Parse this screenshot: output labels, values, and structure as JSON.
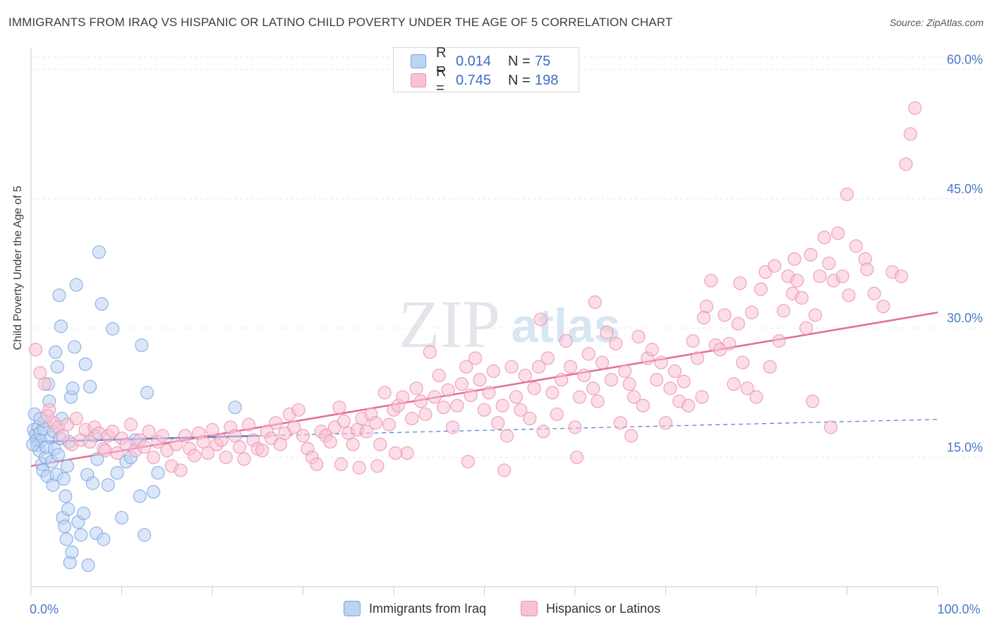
{
  "header": {
    "title": "IMMIGRANTS FROM IRAQ VS HISPANIC OR LATINO CHILD POVERTY UNDER THE AGE OF 5 CORRELATION CHART",
    "source": "Source: ZipAtlas.com"
  },
  "watermark": {
    "zip": "ZIP",
    "atlas": "atlas"
  },
  "legend": {
    "rows": [
      {
        "r_label": "R =",
        "r_value": "0.014",
        "n_label": "N =",
        "n_value": "75",
        "color": "#a9c6f0"
      },
      {
        "r_label": "R =",
        "r_value": "0.745",
        "n_label": "N =",
        "n_value": "198",
        "color": "#f6b6cb"
      }
    ]
  },
  "bottom_legend": {
    "items": [
      {
        "label": "Immigrants from Iraq",
        "color": "#a9c6f0"
      },
      {
        "label": "Hispanics or Latinos",
        "color": "#f6b6cb"
      }
    ]
  },
  "chart_data": {
    "type": "scatter",
    "title": "IMMIGRANTS FROM IRAQ VS HISPANIC OR LATINO CHILD POVERTY UNDER THE AGE OF 5 CORRELATION CHART",
    "xlabel": "",
    "ylabel": "Child Poverty Under the Age of 5",
    "xlim": [
      0,
      100
    ],
    "ylim": [
      0,
      61.5
    ],
    "x_tick_labels": [
      {
        "value": 0,
        "label": "0.0%"
      },
      {
        "value": 100,
        "label": "100.0%"
      }
    ],
    "y_tick_labels": [
      {
        "value": 15,
        "label": "15.0%"
      },
      {
        "value": 30,
        "label": "30.0%"
      },
      {
        "value": 45,
        "label": "45.0%"
      },
      {
        "value": 60,
        "label": "60.0%"
      }
    ],
    "grid": true,
    "series": [
      {
        "name": "Immigrants from Iraq",
        "color": "#7aa3e0",
        "fill": "#bcd3f3",
        "R": 0.014,
        "N": 75,
        "trend": {
          "x0": 0,
          "y0": 16.8,
          "x1": 25,
          "y1": 17.5,
          "dash_to_x": 100,
          "dash_to_y": 19.4,
          "color": "#4a7fd4"
        },
        "points": [
          [
            0.3,
            18.2
          ],
          [
            0.5,
            17.6
          ],
          [
            0.6,
            17.0
          ],
          [
            0.7,
            16.4
          ],
          [
            0.8,
            18.5
          ],
          [
            0.9,
            15.8
          ],
          [
            1.0,
            17.8
          ],
          [
            1.1,
            16.9
          ],
          [
            1.2,
            14.2
          ],
          [
            1.3,
            13.5
          ],
          [
            0.4,
            20.0
          ],
          [
            1.4,
            18.3
          ],
          [
            1.5,
            19.2
          ],
          [
            1.6,
            15.0
          ],
          [
            1.7,
            16.2
          ],
          [
            1.8,
            12.8
          ],
          [
            2.0,
            21.5
          ],
          [
            2.2,
            17.3
          ],
          [
            2.3,
            14.5
          ],
          [
            2.4,
            11.8
          ],
          [
            2.5,
            18.0
          ],
          [
            2.6,
            16.0
          ],
          [
            2.8,
            13.0
          ],
          [
            3.0,
            15.3
          ],
          [
            3.2,
            17.2
          ],
          [
            3.4,
            19.5
          ],
          [
            3.6,
            12.5
          ],
          [
            3.8,
            10.5
          ],
          [
            4.0,
            14.0
          ],
          [
            4.2,
            16.8
          ],
          [
            1.9,
            23.5
          ],
          [
            2.7,
            27.2
          ],
          [
            2.9,
            25.5
          ],
          [
            3.1,
            33.8
          ],
          [
            4.4,
            22.0
          ],
          [
            4.6,
            23.0
          ],
          [
            3.3,
            30.2
          ],
          [
            4.8,
            27.8
          ],
          [
            5.0,
            35.0
          ],
          [
            6.0,
            25.8
          ],
          [
            6.5,
            23.2
          ],
          [
            7.5,
            38.8
          ],
          [
            7.8,
            32.8
          ],
          [
            9.0,
            29.9
          ],
          [
            12.0,
            10.5
          ],
          [
            12.5,
            6.0
          ],
          [
            12.8,
            22.5
          ],
          [
            12.2,
            28.0
          ],
          [
            13.5,
            11.0
          ],
          [
            14.0,
            13.2
          ],
          [
            3.5,
            8.0
          ],
          [
            3.7,
            7.0
          ],
          [
            3.9,
            5.5
          ],
          [
            4.1,
            9.0
          ],
          [
            4.3,
            2.8
          ],
          [
            4.5,
            4.0
          ],
          [
            5.2,
            7.5
          ],
          [
            5.5,
            6.0
          ],
          [
            6.2,
            13.0
          ],
          [
            6.8,
            12.0
          ],
          [
            5.8,
            8.5
          ],
          [
            6.3,
            2.5
          ],
          [
            7.2,
            6.2
          ],
          [
            7.0,
            17.5
          ],
          [
            7.3,
            14.8
          ],
          [
            8.0,
            5.5
          ],
          [
            8.5,
            11.8
          ],
          [
            9.5,
            13.2
          ],
          [
            10.0,
            8.0
          ],
          [
            10.5,
            14.5
          ],
          [
            11.0,
            15.0
          ],
          [
            11.5,
            17.0
          ],
          [
            22.5,
            20.8
          ],
          [
            0.2,
            16.5
          ],
          [
            1.0,
            19.5
          ]
        ]
      },
      {
        "name": "Hispanics or Latinos",
        "color": "#ec8fb0",
        "fill": "#f7c3d4",
        "R": 0.745,
        "N": 198,
        "trend": {
          "x0": 0,
          "y0": 14.0,
          "x1": 100,
          "y1": 31.8,
          "color": "#e56b97"
        },
        "points": [
          [
            0.5,
            27.5
          ],
          [
            1.0,
            24.8
          ],
          [
            1.5,
            23.5
          ],
          [
            2.0,
            20.5
          ],
          [
            2.5,
            19.0
          ],
          [
            3.0,
            18.5
          ],
          [
            3.5,
            17.5
          ],
          [
            4.0,
            18.8
          ],
          [
            4.5,
            16.5
          ],
          [
            5.0,
            19.5
          ],
          [
            5.5,
            17.0
          ],
          [
            6.0,
            18.2
          ],
          [
            6.5,
            16.8
          ],
          [
            7.0,
            18.5
          ],
          [
            7.5,
            17.8
          ],
          [
            8.0,
            16.0
          ],
          [
            8.5,
            17.5
          ],
          [
            9.0,
            18.0
          ],
          [
            9.5,
            15.5
          ],
          [
            10.0,
            17.2
          ],
          [
            10.5,
            16.5
          ],
          [
            11.0,
            18.8
          ],
          [
            11.5,
            15.8
          ],
          [
            12.0,
            17.0
          ],
          [
            12.5,
            16.2
          ],
          [
            13.0,
            18.0
          ],
          [
            13.5,
            15.0
          ],
          [
            14.0,
            16.8
          ],
          [
            14.5,
            17.5
          ],
          [
            15.0,
            15.8
          ],
          [
            15.5,
            14.0
          ],
          [
            16.0,
            16.5
          ],
          [
            16.5,
            13.5
          ],
          [
            17.0,
            17.5
          ],
          [
            17.5,
            16.0
          ],
          [
            18.0,
            15.2
          ],
          [
            18.5,
            17.8
          ],
          [
            19.0,
            16.8
          ],
          [
            19.5,
            15.5
          ],
          [
            20.0,
            18.2
          ],
          [
            20.5,
            16.5
          ],
          [
            21.0,
            17.0
          ],
          [
            21.5,
            15.0
          ],
          [
            22.0,
            18.5
          ],
          [
            22.5,
            17.5
          ],
          [
            23.0,
            16.2
          ],
          [
            23.5,
            14.8
          ],
          [
            24.0,
            18.8
          ],
          [
            24.5,
            17.0
          ],
          [
            25.0,
            16.0
          ],
          [
            25.5,
            15.8
          ],
          [
            26.0,
            18.0
          ],
          [
            26.5,
            17.2
          ],
          [
            27.0,
            19.0
          ],
          [
            27.5,
            16.5
          ],
          [
            28.0,
            17.8
          ],
          [
            28.5,
            20.0
          ],
          [
            29.0,
            18.5
          ],
          [
            29.5,
            20.5
          ],
          [
            30.0,
            17.5
          ],
          [
            30.5,
            16.0
          ],
          [
            31.0,
            15.0
          ],
          [
            31.5,
            14.2
          ],
          [
            32.0,
            18.0
          ],
          [
            32.5,
            17.5
          ],
          [
            33.0,
            16.8
          ],
          [
            33.5,
            18.5
          ],
          [
            34.0,
            20.8
          ],
          [
            34.5,
            19.2
          ],
          [
            35.0,
            17.8
          ],
          [
            35.5,
            16.5
          ],
          [
            36.0,
            18.2
          ],
          [
            36.5,
            19.5
          ],
          [
            37.0,
            18.0
          ],
          [
            37.5,
            20.0
          ],
          [
            38.0,
            19.0
          ],
          [
            38.5,
            16.5
          ],
          [
            39.0,
            22.5
          ],
          [
            39.5,
            18.8
          ],
          [
            40.0,
            20.5
          ],
          [
            40.5,
            21.0
          ],
          [
            41.0,
            22.0
          ],
          [
            41.5,
            15.5
          ],
          [
            42.0,
            19.5
          ],
          [
            42.5,
            23.0
          ],
          [
            43.0,
            21.5
          ],
          [
            43.5,
            20.0
          ],
          [
            44.0,
            27.2
          ],
          [
            44.5,
            22.0
          ],
          [
            45.0,
            24.5
          ],
          [
            45.5,
            20.8
          ],
          [
            46.0,
            22.8
          ],
          [
            46.5,
            18.5
          ],
          [
            47.0,
            21.0
          ],
          [
            47.5,
            23.5
          ],
          [
            48.0,
            25.5
          ],
          [
            48.5,
            22.2
          ],
          [
            49.0,
            26.5
          ],
          [
            49.5,
            24.0
          ],
          [
            50.0,
            20.5
          ],
          [
            50.5,
            22.5
          ],
          [
            51.0,
            25.0
          ],
          [
            51.5,
            19.0
          ],
          [
            52.0,
            21.0
          ],
          [
            52.5,
            17.5
          ],
          [
            53.0,
            25.5
          ],
          [
            53.5,
            22.0
          ],
          [
            54.0,
            20.5
          ],
          [
            54.5,
            24.5
          ],
          [
            55.0,
            19.5
          ],
          [
            55.5,
            23.0
          ],
          [
            56.0,
            25.5
          ],
          [
            56.5,
            18.0
          ],
          [
            57.0,
            26.5
          ],
          [
            57.5,
            22.5
          ],
          [
            58.0,
            20.0
          ],
          [
            58.5,
            24.0
          ],
          [
            59.0,
            28.5
          ],
          [
            59.5,
            25.5
          ],
          [
            60.0,
            18.5
          ],
          [
            60.5,
            22.0
          ],
          [
            61.0,
            24.5
          ],
          [
            61.5,
            27.0
          ],
          [
            62.0,
            23.0
          ],
          [
            62.5,
            21.5
          ],
          [
            63.0,
            26.0
          ],
          [
            63.5,
            29.5
          ],
          [
            64.0,
            24.0
          ],
          [
            64.5,
            28.2
          ],
          [
            65.0,
            19.0
          ],
          [
            65.5,
            25.0
          ],
          [
            66.0,
            23.5
          ],
          [
            66.5,
            22.0
          ],
          [
            67.0,
            29.0
          ],
          [
            67.5,
            21.0
          ],
          [
            68.0,
            26.5
          ],
          [
            68.5,
            27.5
          ],
          [
            69.0,
            24.0
          ],
          [
            69.5,
            26.0
          ],
          [
            70.0,
            19.0
          ],
          [
            70.5,
            23.0
          ],
          [
            71.0,
            25.0
          ],
          [
            71.5,
            21.5
          ],
          [
            72.0,
            23.8
          ],
          [
            72.5,
            21.0
          ],
          [
            73.0,
            28.5
          ],
          [
            73.5,
            26.5
          ],
          [
            74.0,
            22.0
          ],
          [
            74.5,
            32.5
          ],
          [
            75.0,
            35.5
          ],
          [
            75.5,
            28.0
          ],
          [
            76.0,
            27.5
          ],
          [
            76.5,
            31.5
          ],
          [
            77.0,
            28.2
          ],
          [
            77.5,
            23.5
          ],
          [
            78.0,
            30.5
          ],
          [
            78.5,
            26.0
          ],
          [
            79.0,
            23.0
          ],
          [
            79.5,
            31.8
          ],
          [
            80.0,
            22.0
          ],
          [
            80.5,
            34.5
          ],
          [
            81.0,
            36.5
          ],
          [
            81.5,
            25.5
          ],
          [
            82.0,
            37.2
          ],
          [
            82.5,
            28.5
          ],
          [
            83.0,
            32.0
          ],
          [
            83.5,
            36.0
          ],
          [
            84.0,
            34.0
          ],
          [
            84.5,
            35.5
          ],
          [
            85.0,
            33.5
          ],
          [
            85.5,
            30.0
          ],
          [
            86.0,
            38.5
          ],
          [
            86.5,
            31.5
          ],
          [
            87.0,
            36.0
          ],
          [
            87.5,
            40.5
          ],
          [
            88.0,
            37.5
          ],
          [
            88.5,
            35.5
          ],
          [
            89.0,
            41.0
          ],
          [
            89.5,
            36.0
          ],
          [
            90.0,
            45.5
          ],
          [
            96.5,
            49.0
          ],
          [
            97.0,
            52.5
          ],
          [
            97.5,
            55.5
          ],
          [
            95.0,
            36.5
          ],
          [
            94.0,
            32.5
          ],
          [
            93.0,
            34.0
          ],
          [
            92.0,
            38.0
          ],
          [
            91.0,
            39.5
          ],
          [
            88.2,
            18.5
          ],
          [
            86.2,
            21.5
          ],
          [
            66.2,
            17.5
          ],
          [
            60.2,
            15.0
          ],
          [
            52.2,
            13.5
          ],
          [
            48.2,
            14.5
          ],
          [
            40.2,
            15.5
          ],
          [
            38.2,
            14.0
          ],
          [
            36.2,
            13.8
          ],
          [
            34.2,
            14.2
          ],
          [
            8.2,
            15.8
          ],
          [
            1.8,
            19.8
          ],
          [
            56.2,
            31.0
          ],
          [
            62.2,
            33.0
          ],
          [
            74.2,
            31.2
          ],
          [
            78.2,
            35.2
          ],
          [
            84.2,
            38.0
          ],
          [
            90.2,
            33.8
          ],
          [
            92.2,
            36.8
          ],
          [
            96.0,
            36.0
          ]
        ]
      }
    ]
  }
}
